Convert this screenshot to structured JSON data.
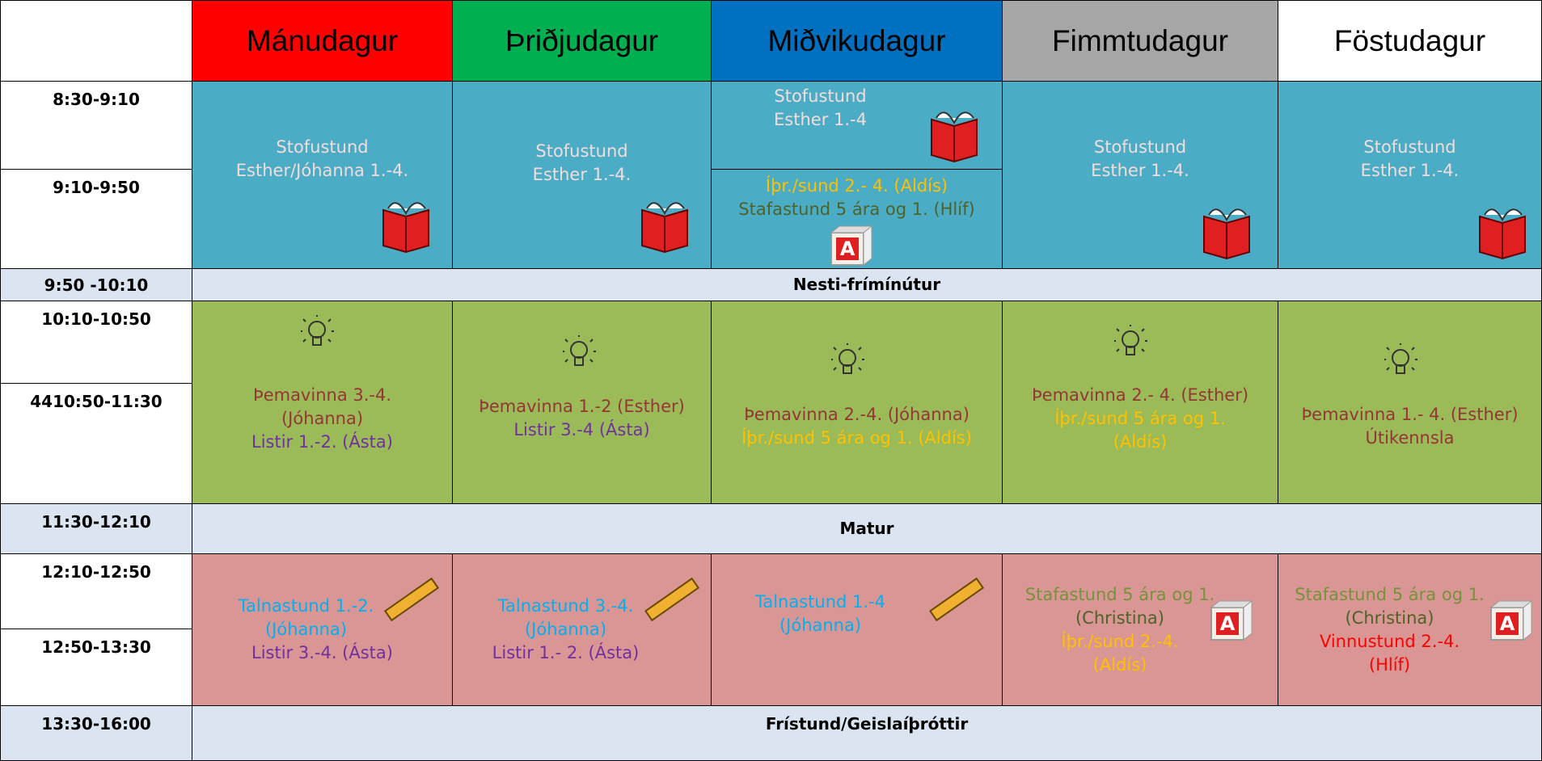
{
  "days": [
    "Mánudagur",
    "Þriðjudagur",
    "Miðvikudagur",
    "Fimmtudagur",
    "Föstudagur"
  ],
  "times": [
    "8:30-9:10",
    "9:10-9:50",
    "9:50 -10:10",
    "10:10-10:50",
    "4410:50-11:30",
    "11:30-12:10",
    "12:10-12:50",
    "12:50-13:30",
    "13:30-16:00"
  ],
  "breaks": [
    "Nesti-frímínútur",
    "Matur",
    "Frístund/Geislaíþróttir"
  ],
  "morning": [
    [
      "Stofustund",
      "Esther/Jóhanna 1.-4."
    ],
    [
      "Stofustund",
      "Esther 1.-4."
    ],
    [
      "Stofustund",
      "Esther 1.-4"
    ],
    [
      "Stofustund",
      "Esther 1.-4."
    ],
    [
      "Stofustund",
      "Esther 1.-4."
    ]
  ],
  "morning_wed_second": [
    "Íþr./sund 2.- 4. (Aldís)",
    "Stafastund 5 ára og 1. (Hlíf)"
  ],
  "midday": [
    [
      "Þemavinna 3.-4.",
      "(Jóhanna)",
      "Listir 1.-2. (Ásta)"
    ],
    [
      "Þemavinna 1.-2 (Esther)",
      "Listir 3.-4 (Ásta)"
    ],
    [
      "Þemavinna 2.-4. (Jóhanna)",
      "Íþr./sund 5 ára og 1. (Aldís)"
    ],
    [
      "Þemavinna 2.- 4. (Esther)",
      "Íþr./sund 5 ára og 1.",
      "(Aldís)"
    ],
    [
      "Þemavinna 1.- 4. (Esther)",
      "Útikennsla"
    ]
  ],
  "afternoon": [
    [
      "Talnastund 1.-2.",
      "(Jóhanna)",
      "Listir 3.-4. (Ásta)"
    ],
    [
      "Talnastund 3.-4.",
      "(Jóhanna)",
      "Listir 1.- 2. (Ásta)"
    ],
    [
      "Talnastund 1.-4",
      "(Jóhanna)"
    ],
    [
      "Stafastund 5 ára og 1.",
      "(Christina)",
      "Íþr./sund 2.-4.",
      "(Aldís)"
    ],
    [
      "Stafastund 5 ára og 1.",
      "(Christina)",
      "Vinnustund 2.-4.",
      "(Hlíf)"
    ]
  ]
}
